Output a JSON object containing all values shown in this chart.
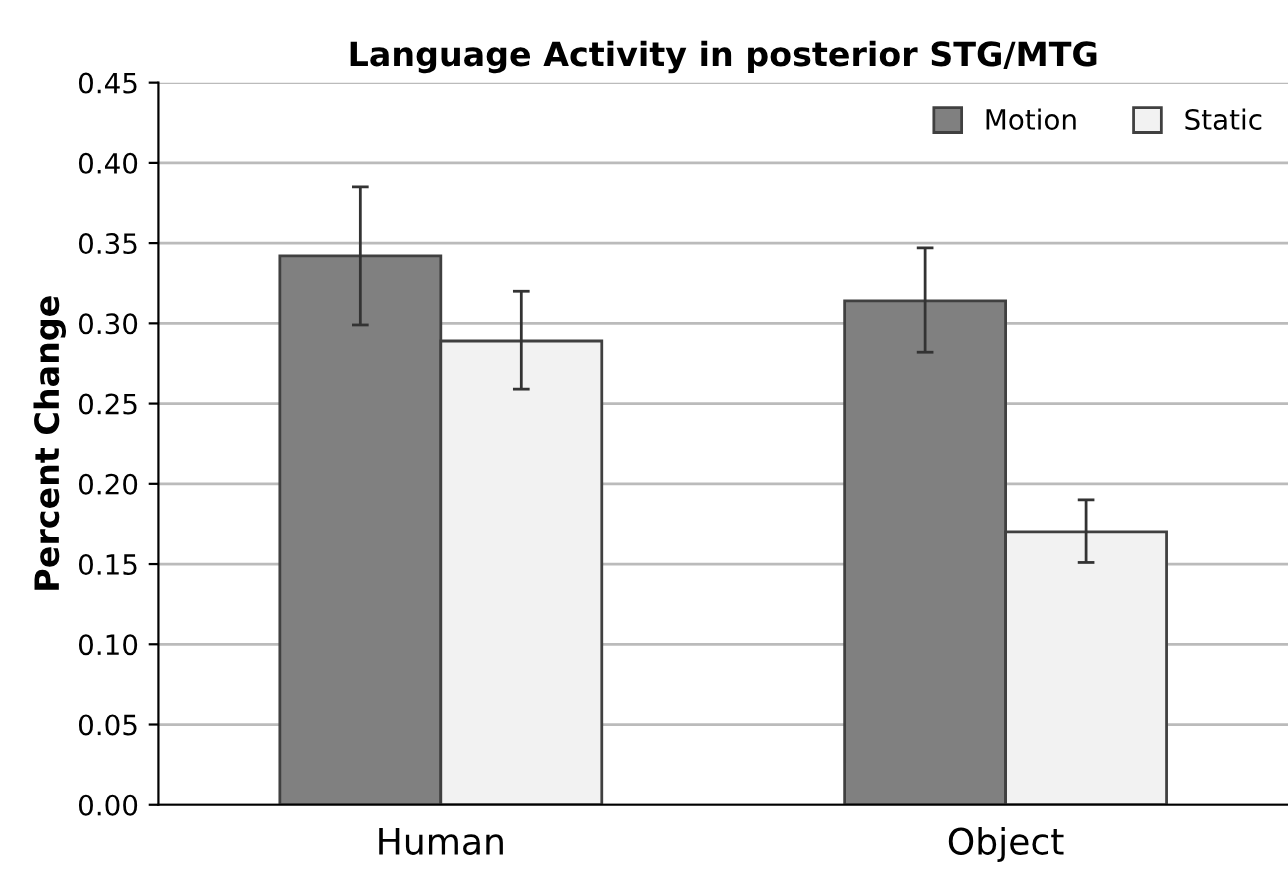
{
  "chart_data": {
    "type": "bar",
    "title": "Language Activity in posterior STG/MTG",
    "ylabel": "Percent Change",
    "categories": [
      "Human",
      "Object"
    ],
    "series": [
      {
        "name": "Motion",
        "color": "#808080",
        "values": [
          0.342,
          0.314
        ],
        "errors": [
          [
            0.299,
            0.385
          ],
          [
            0.282,
            0.347
          ]
        ]
      },
      {
        "name": "Static",
        "color": "#f2f2f2",
        "values": [
          0.289,
          0.17
        ],
        "errors": [
          [
            0.259,
            0.32
          ],
          [
            0.151,
            0.19
          ]
        ]
      }
    ],
    "ylim": [
      0,
      0.45
    ],
    "yticks": [
      {
        "value": 0,
        "label": "0.00"
      },
      {
        "value": 0.05,
        "label": "0.05"
      },
      {
        "value": 0.1,
        "label": "0.10"
      },
      {
        "value": 0.15,
        "label": "0.15"
      },
      {
        "value": 0.2,
        "label": "0.20"
      },
      {
        "value": 0.25,
        "label": "0.25"
      },
      {
        "value": 0.3,
        "label": "0.30"
      },
      {
        "value": 0.35,
        "label": "0.35"
      },
      {
        "value": 0.4,
        "label": "0.40"
      },
      {
        "value": 0.45,
        "label": "0.45"
      }
    ],
    "grid": "y",
    "legend": "top right"
  }
}
